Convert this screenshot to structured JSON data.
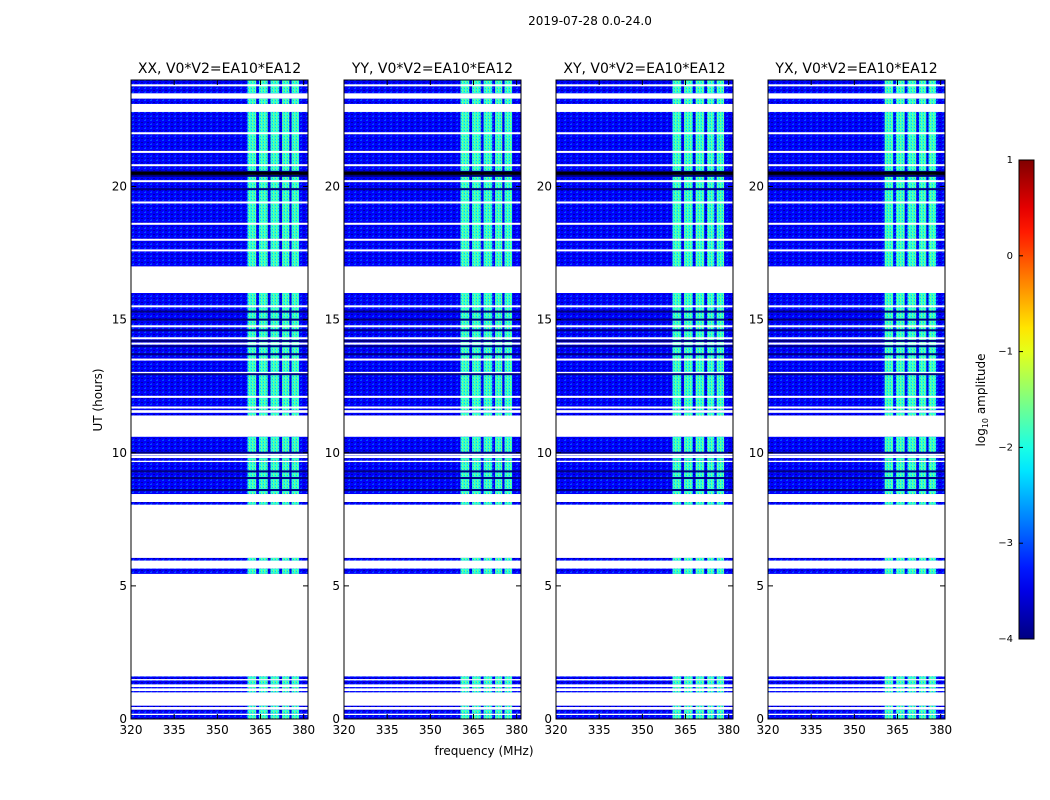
{
  "chart_data": {
    "type": "heatmap",
    "suptitle": "2019-07-28 0.0-24.0",
    "xlabel": "frequency (MHz)",
    "ylabel": "UT (hours)",
    "xlim": [
      320,
      381.5
    ],
    "ylim": [
      0,
      24
    ],
    "xticks": [
      320,
      335,
      350,
      365,
      380
    ],
    "yticks": [
      0,
      5,
      10,
      15,
      20
    ],
    "panels": [
      {
        "title": "XX, V0*V2=EA10*EA12"
      },
      {
        "title": "YY, V0*V2=EA10*EA12"
      },
      {
        "title": "XY, V0*V2=EA10*EA12"
      },
      {
        "title": "YX, V0*V2=EA10*EA12"
      }
    ],
    "colorbar": {
      "label": "log10 amplitude",
      "range": [
        -4,
        1
      ],
      "ticks": [
        1,
        0,
        -1,
        -2,
        -3,
        -4
      ],
      "tick_labels": [
        "1",
        "0",
        "−1",
        "−2",
        "−3",
        "−4"
      ],
      "colormap": "jet"
    },
    "data_coverage_ut_hours": [
      [
        0.0,
        0.15
      ],
      [
        0.2,
        0.35
      ],
      [
        0.45,
        0.5
      ],
      [
        1.0,
        1.05
      ],
      [
        1.15,
        1.2
      ],
      [
        1.3,
        1.45
      ],
      [
        1.5,
        1.6
      ],
      [
        5.45,
        5.65
      ],
      [
        5.95,
        6.05
      ],
      [
        8.05,
        8.15
      ],
      [
        8.45,
        9.65
      ],
      [
        9.7,
        9.8
      ],
      [
        9.9,
        10.6
      ],
      [
        11.4,
        11.5
      ],
      [
        11.6,
        16.0
      ],
      [
        17.0,
        22.8
      ],
      [
        23.1,
        23.3
      ],
      [
        23.5,
        24.0
      ]
    ],
    "blank_rows_ut_hours": [
      3.8,
      9.95,
      11.7,
      12.1,
      13.0,
      13.5,
      14.1,
      14.3,
      14.75,
      15.5,
      17.6,
      18.0,
      18.6,
      19.4,
      20.2,
      20.8,
      21.3,
      22.0,
      23.8
    ],
    "dark_rows_ut_hours": [
      8.6,
      9.05,
      9.3,
      10.0,
      12.95,
      13.7,
      14.0,
      14.2,
      14.6,
      15.0,
      15.3,
      20.4,
      20.5,
      20.55,
      19.9
    ],
    "background_log10_amplitude": -3.4,
    "rfi_band_mhz": [
      359.5,
      378.5
    ],
    "rfi_subbands_mhz": [
      [
        360.5,
        363.5
      ],
      [
        364.5,
        367.5
      ],
      [
        368.5,
        371.5
      ],
      [
        372.5,
        375.0
      ],
      [
        375.8,
        378.4
      ]
    ],
    "rfi_log10_amplitude": -1.9
  }
}
